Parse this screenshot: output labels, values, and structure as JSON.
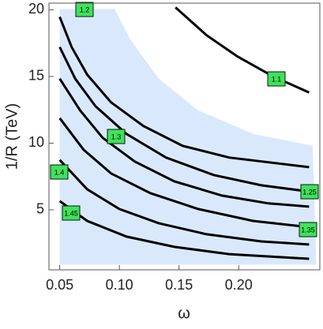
{
  "chart_data": {
    "type": "contour",
    "xlabel": "ω",
    "ylabel": "1/R (TeV)",
    "xlim": [
      0.041,
      0.268
    ],
    "ylim": [
      0.5,
      20.5
    ],
    "xticks": [
      0.05,
      {
        "value": 0.1,
        "label": "0.10"
      },
      0.15,
      {
        "value": 0.2,
        "label": "0.20"
      }
    ],
    "yticks": [
      5,
      10,
      15,
      20
    ],
    "line_color": "#000000",
    "label_color": "#3de35a",
    "region": {
      "color": "#d9e9fb",
      "x": [
        0.05,
        0.096,
        0.109,
        0.133,
        0.166,
        0.212,
        0.262,
        0.265,
        0.05
      ],
      "y": [
        20.06,
        20.06,
        17.8,
        14.84,
        12.47,
        10.69,
        9.8,
        0.89,
        0.89
      ]
    },
    "series": [
      {
        "level": 1.1,
        "x": [
          0.147,
          0.173,
          0.199,
          0.229,
          0.259
        ],
        "y": [
          20.18,
          18.1,
          16.5,
          15.0,
          13.8
        ]
      },
      {
        "level": 1.2,
        "x": [
          0.05,
          0.06,
          0.073,
          0.093,
          0.12,
          0.153,
          0.192,
          0.259
        ],
        "y": [
          19.47,
          17.21,
          15.14,
          13.06,
          11.29,
          9.8,
          8.92,
          8.2
        ]
      },
      {
        "level": 1.25,
        "x": [
          0.05,
          0.063,
          0.08,
          0.106,
          0.139,
          0.179,
          0.219,
          0.259
        ],
        "y": [
          17.21,
          14.84,
          12.77,
          10.69,
          8.92,
          7.61,
          6.84,
          6.37
        ]
      },
      {
        "level": 1.3,
        "x": [
          0.05,
          0.067,
          0.086,
          0.113,
          0.146,
          0.186,
          0.225,
          0.259
        ],
        "y": [
          14.84,
          12.47,
          10.4,
          8.62,
          7.14,
          6.07,
          5.48,
          5.24
        ]
      },
      {
        "level": 1.35,
        "x": [
          0.05,
          0.07,
          0.093,
          0.126,
          0.166,
          0.212,
          0.259
        ],
        "y": [
          11.88,
          9.51,
          7.73,
          6.25,
          5.06,
          4.17,
          3.7
        ]
      },
      {
        "level": 1.4,
        "x": [
          0.05,
          0.073,
          0.1,
          0.133,
          0.173,
          0.219,
          0.259
        ],
        "y": [
          8.74,
          6.54,
          5.06,
          4.0,
          3.17,
          2.63,
          2.4
        ]
      },
      {
        "level": 1.45,
        "x": [
          0.05,
          0.073,
          0.106,
          0.146,
          0.192,
          0.259
        ],
        "y": [
          5.66,
          4.17,
          2.99,
          2.22,
          1.68,
          1.33
        ]
      }
    ]
  }
}
